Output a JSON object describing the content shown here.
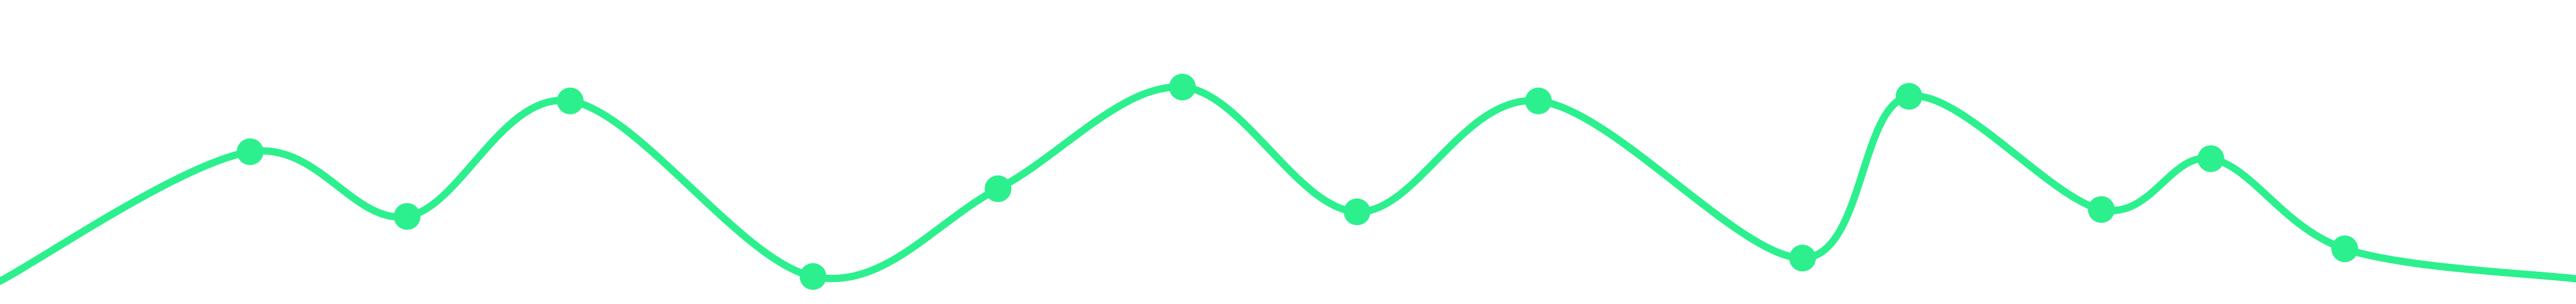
{
  "chart_data": {
    "type": "line",
    "title": "",
    "xlabel": "",
    "ylabel": "",
    "grid": false,
    "legend": "none",
    "line_color": "#2cf08e",
    "marker_color": "#2cf08e",
    "ylim": [
      0,
      100
    ],
    "series": [
      {
        "values": [
          2,
          58,
          30,
          80,
          4,
          42,
          86,
          32,
          80,
          12,
          82,
          33,
          55,
          16,
          3
        ],
        "markers": [
          false,
          true,
          true,
          true,
          true,
          true,
          true,
          true,
          true,
          true,
          true,
          true,
          true,
          true,
          false
        ]
      }
    ]
  }
}
